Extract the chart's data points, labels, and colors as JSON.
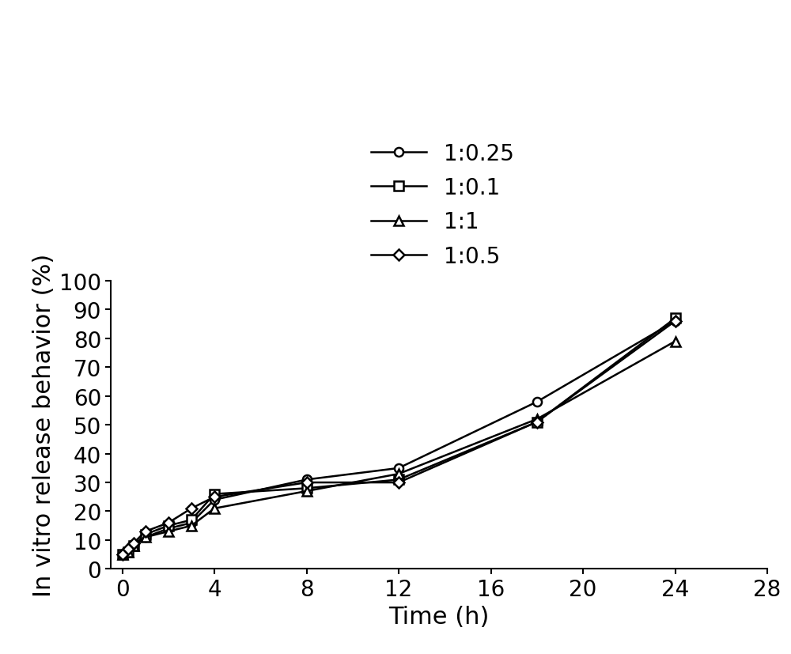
{
  "series": [
    {
      "label": "1:0.25",
      "marker": "o",
      "markersize": 8,
      "x": [
        0,
        0.25,
        0.5,
        1,
        2,
        3,
        4,
        8,
        12,
        18,
        24
      ],
      "y": [
        5,
        6,
        8,
        11,
        14,
        16,
        24,
        31,
        35,
        58,
        86
      ]
    },
    {
      "label": "1:0.1",
      "marker": "s",
      "markersize": 8,
      "x": [
        0,
        0.25,
        0.5,
        1,
        2,
        3,
        4,
        8,
        12,
        18,
        24
      ],
      "y": [
        5,
        6,
        8,
        12,
        15,
        17,
        26,
        28,
        31,
        51,
        87
      ]
    },
    {
      "label": "1:1",
      "marker": "^",
      "markersize": 9,
      "x": [
        0,
        0.25,
        0.5,
        1,
        2,
        3,
        4,
        8,
        12,
        18,
        24
      ],
      "y": [
        5,
        6,
        8,
        11,
        13,
        15,
        21,
        27,
        33,
        52,
        79
      ]
    },
    {
      "label": "1:0.5",
      "marker": "D",
      "markersize": 7,
      "x": [
        0,
        0.25,
        0.5,
        1,
        2,
        3,
        4,
        8,
        12,
        18,
        24
      ],
      "y": [
        5,
        7,
        9,
        13,
        16,
        21,
        25,
        30,
        30,
        51,
        86
      ]
    }
  ],
  "line_color": "#000000",
  "xlim": [
    -0.5,
    28
  ],
  "ylim": [
    0,
    100
  ],
  "xticks": [
    0,
    4,
    8,
    12,
    16,
    20,
    24,
    28
  ],
  "yticks": [
    0,
    10,
    20,
    30,
    40,
    50,
    60,
    70,
    80,
    90,
    100
  ],
  "xlabel": "Time (h)",
  "ylabel": "In vitro release behavior (%)",
  "xlabel_fontsize": 22,
  "ylabel_fontsize": 22,
  "tick_fontsize": 20,
  "legend_fontsize": 20,
  "background_color": "#ffffff",
  "linewidth": 1.8,
  "markerfacecolor": "white",
  "markeredgecolor": "#000000",
  "markeredgewidth": 1.8
}
